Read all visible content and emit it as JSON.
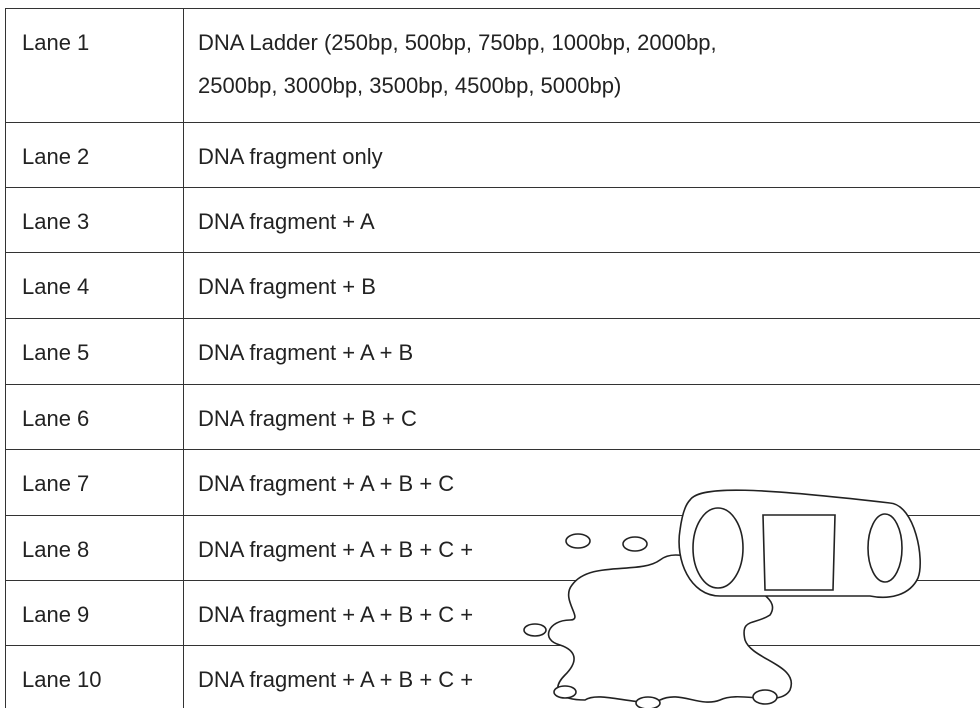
{
  "table": {
    "rows": [
      {
        "lane": "Lane 1",
        "description": [
          "DNA Ladder (250bp, 500bp, 750bp, 1000bp, 2000bp,",
          "2500bp, 3000bp, 3500bp, 4500bp, 5000bp)"
        ]
      },
      {
        "lane": "Lane 2",
        "description": [
          "DNA fragment only"
        ]
      },
      {
        "lane": "Lane 3",
        "description": [
          "DNA fragment + A"
        ]
      },
      {
        "lane": "Lane 4",
        "description": [
          "DNA fragment + B"
        ]
      },
      {
        "lane": "Lane 5",
        "description": [
          "DNA fragment + A + B"
        ]
      },
      {
        "lane": "Lane 6",
        "description": [
          "DNA fragment + B + C"
        ]
      },
      {
        "lane": "Lane 7",
        "description": [
          "DNA fragment + A + B + C"
        ]
      },
      {
        "lane": "Lane 8",
        "description": [
          "DNA fragment + A + B + C +"
        ]
      },
      {
        "lane": "Lane 9",
        "description": [
          "DNA fragment + A + B + C +"
        ]
      },
      {
        "lane": "Lane 10",
        "description": [
          "DNA fragment + A + B + C +"
        ]
      }
    ]
  }
}
